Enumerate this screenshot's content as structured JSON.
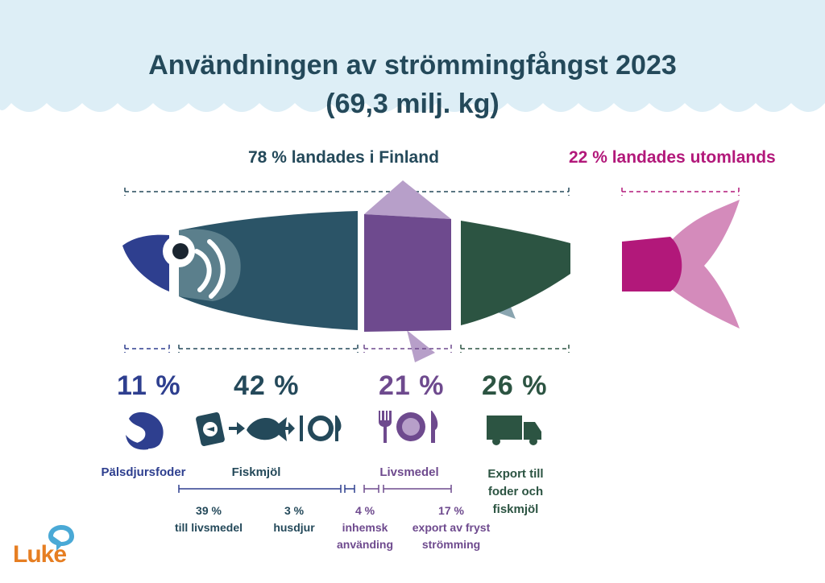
{
  "title": {
    "line1": "Användningen av strömmingfångst 2023",
    "line2": "(69,3 milj. kg)"
  },
  "headers": {
    "finland": "78 % landades i Finland",
    "abroad": "22 % landades utomlands"
  },
  "colors": {
    "navy": "#24495a",
    "blue": "#2e3f8f",
    "slate": "#2b5467",
    "gill": "#5b7f8c",
    "purple": "#6e4a8e",
    "purple_light": "#b79fc9",
    "green": "#2c5442",
    "magenta": "#b2187a",
    "pink": "#d48bbb",
    "sky": "#ddeef6"
  },
  "segments": [
    {
      "id": "pelt",
      "percent": "11 %",
      "label": "Pälsdjursfoder",
      "icon": "mink-icon"
    },
    {
      "id": "fishmeal",
      "percent": "42 %",
      "label": "Fiskmjöl",
      "icon": "feed-to-fish-to-plate-icon"
    },
    {
      "id": "food",
      "percent": "21 %",
      "label": "Livsmedel",
      "icon": "plate-icon"
    },
    {
      "id": "export",
      "percent": "26 %",
      "label_lines": [
        "Export till",
        "foder och",
        "fiskmjöl"
      ],
      "icon": "truck-icon"
    }
  ],
  "breakdown": [
    {
      "percent": "39 %",
      "text": "till livsmedel"
    },
    {
      "percent": "3 %",
      "text": "husdjur"
    },
    {
      "percent": "4 %",
      "text_lines": [
        "inhemsk",
        "använding"
      ]
    },
    {
      "percent": "17 %",
      "text_lines": [
        "export av fryst",
        "strömming"
      ]
    }
  ],
  "logo": "Luke"
}
